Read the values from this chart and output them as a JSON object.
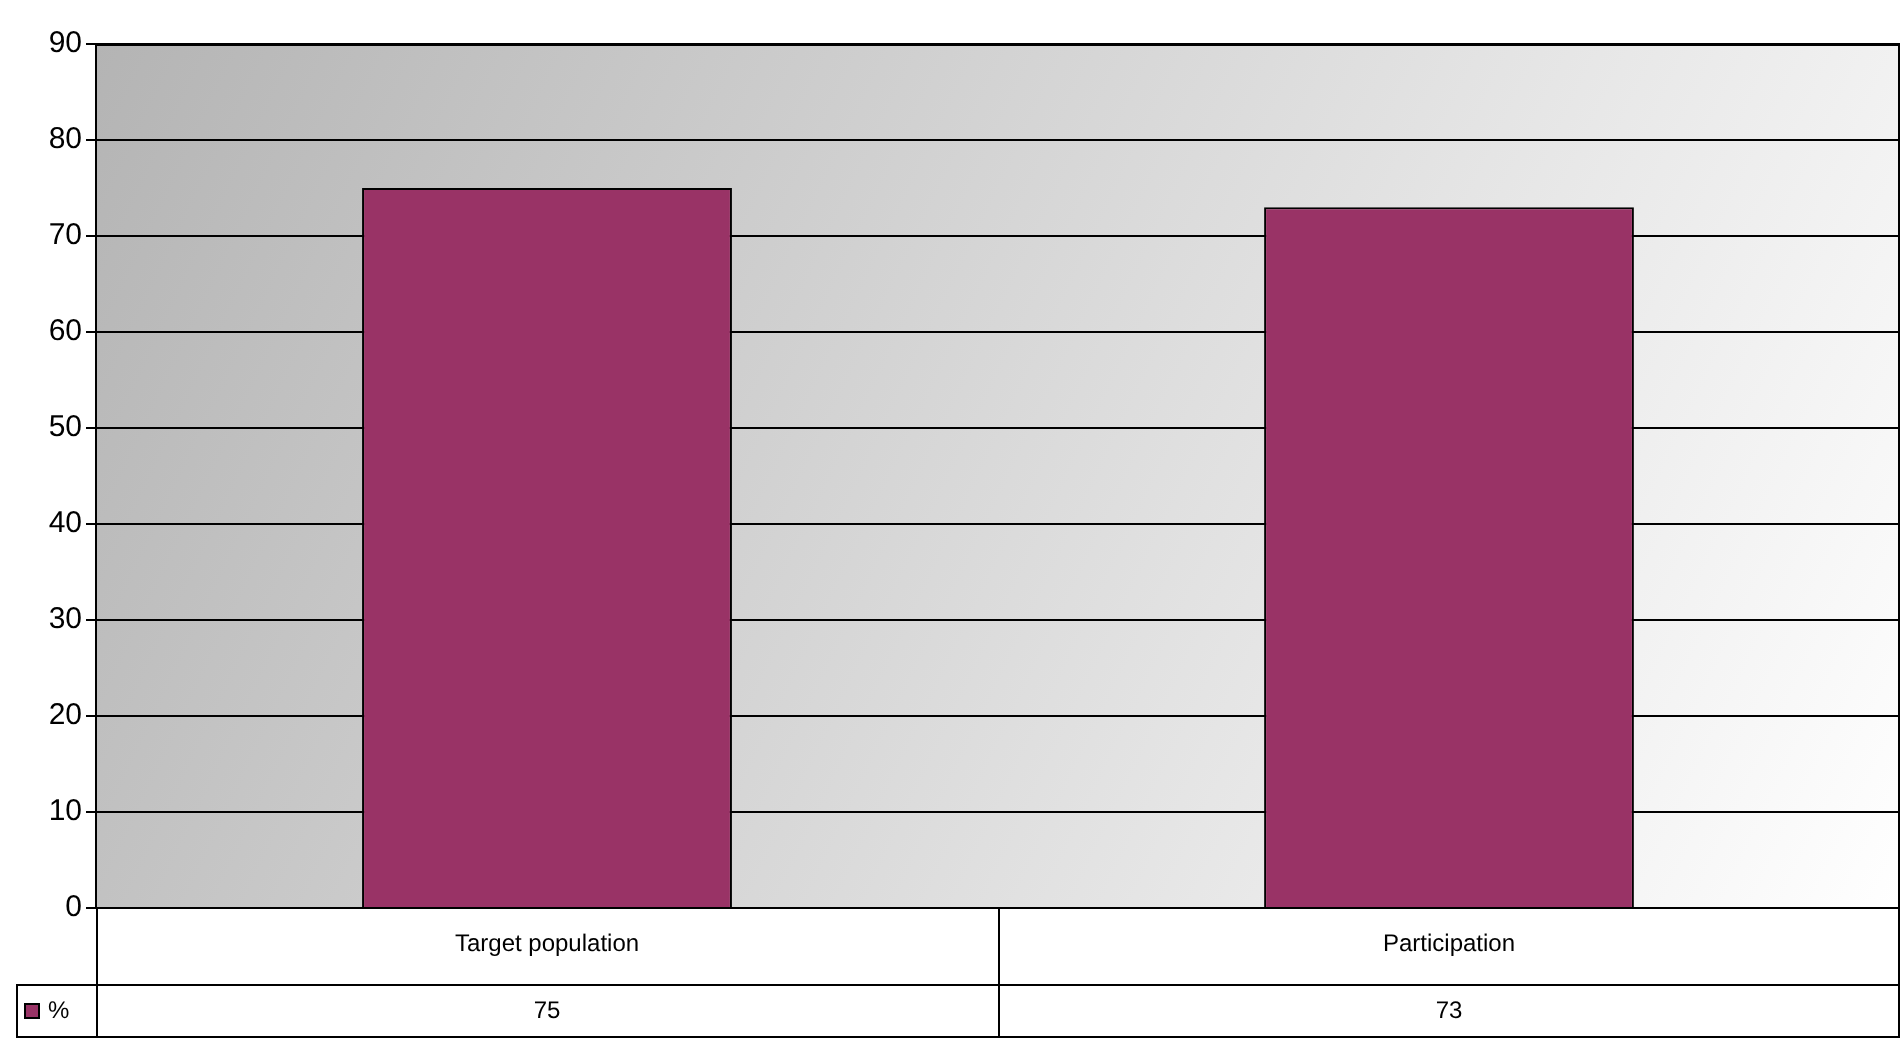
{
  "chart_data": {
    "type": "bar",
    "categories": [
      "Target population",
      "Participation"
    ],
    "series": [
      {
        "name": "%",
        "color": "#993366",
        "values": [
          75,
          73
        ]
      }
    ],
    "ylim": [
      0,
      90
    ],
    "yticks": [
      0,
      10,
      20,
      30,
      40,
      50,
      60,
      70,
      80,
      90
    ],
    "grid": "y",
    "legend": "bottom left",
    "data_labels": true
  }
}
